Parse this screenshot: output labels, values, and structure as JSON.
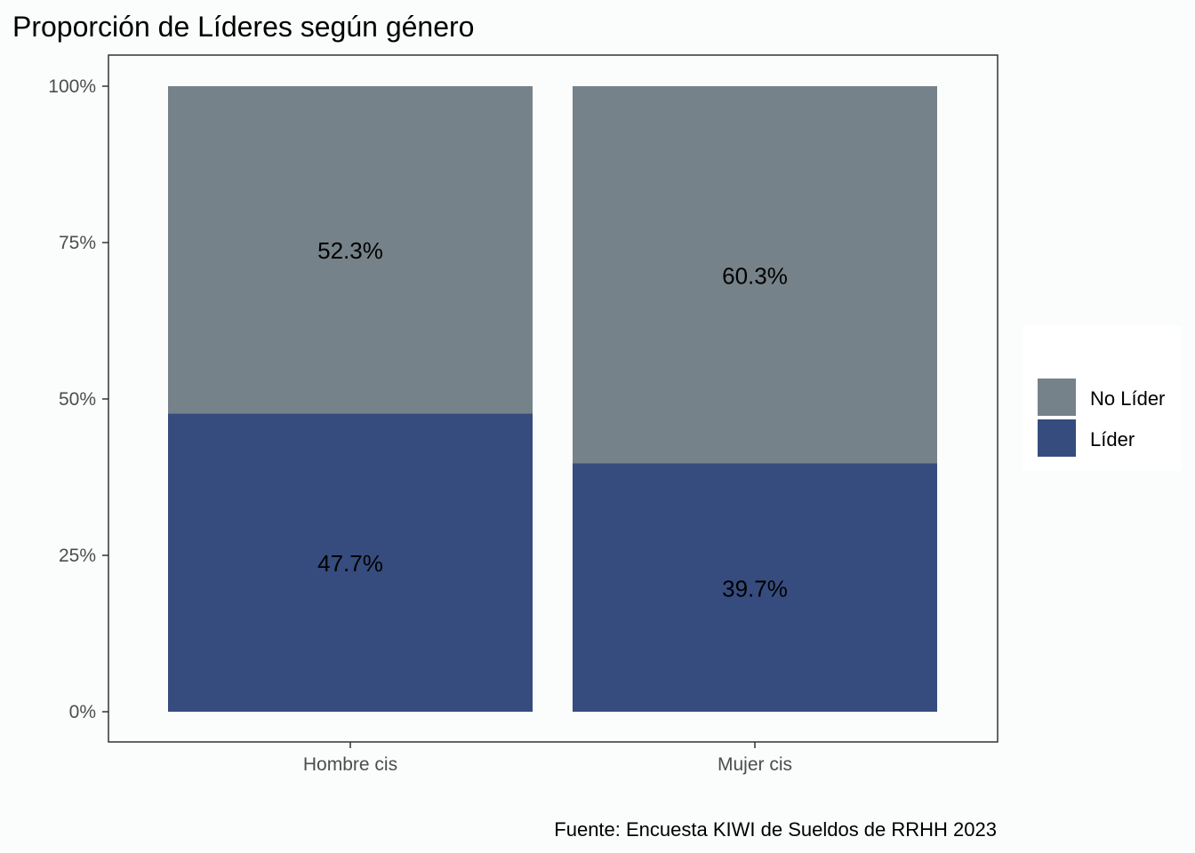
{
  "chart_data": {
    "type": "bar",
    "stacked": true,
    "normalized": true,
    "title": "Proporción de Líderes según género",
    "caption": "Fuente: Encuesta KIWI de Sueldos de RRHH 2023",
    "categories": [
      "Hombre cis",
      "Mujer cis"
    ],
    "series": [
      {
        "name": "Líder",
        "values": [
          47.7,
          39.7
        ],
        "labels": [
          "47.7%",
          "39.7%"
        ],
        "color": "#364c7e"
      },
      {
        "name": "No Líder",
        "values": [
          52.3,
          60.3
        ],
        "labels": [
          "52.3%",
          "60.3%"
        ],
        "color": "#768289"
      }
    ],
    "y_ticks": [
      {
        "value": 0,
        "label": "0%"
      },
      {
        "value": 25,
        "label": "25%"
      },
      {
        "value": 50,
        "label": "50%"
      },
      {
        "value": 75,
        "label": "75%"
      },
      {
        "value": 100,
        "label": "100%"
      }
    ],
    "ylim": [
      0,
      100
    ],
    "xlabel": "",
    "ylabel": "",
    "grid": false,
    "legend": {
      "placement": "right",
      "entries": [
        {
          "label": "No Líder",
          "color": "#768289"
        },
        {
          "label": "Líder",
          "color": "#364c7e"
        }
      ]
    }
  }
}
